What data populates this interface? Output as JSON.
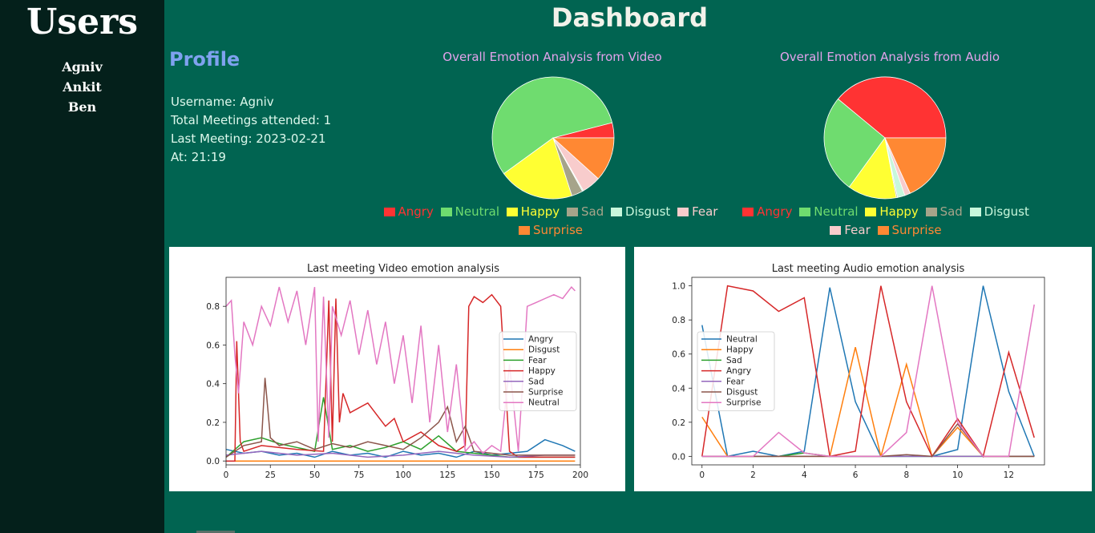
{
  "sidebar": {
    "title": "Users",
    "users": [
      "Agniv",
      "Ankit",
      "Ben"
    ]
  },
  "header": {
    "title": "Dashboard"
  },
  "profile": {
    "title": "Profile",
    "username": "Username: Agniv",
    "total_meetings": "Total Meetings attended: 1",
    "last_meeting": "Last Meeting: 2023-02-21",
    "at": "At: 21:19"
  },
  "colors": {
    "Angry": "#ff3333",
    "Neutral": "#6fdc6f",
    "Happy": "#ffff33",
    "Sad": "#a6a48a",
    "Disgust": "#c8f7dc",
    "Fear": "#f8cccc",
    "Surprise": "#ff8833",
    "page_bg": "#016451",
    "sidebar_bg": "#04201b"
  },
  "chart_data": [
    {
      "type": "pie",
      "title": "Overall Emotion Analysis from Video",
      "labels": [
        "Angry",
        "Neutral",
        "Happy",
        "Sad",
        "Disgust",
        "Fear",
        "Surprise"
      ],
      "values": [
        4,
        56,
        20,
        3,
        0.3,
        5,
        11.7
      ]
    },
    {
      "type": "pie",
      "title": "Overall Emotion Analysis from Audio",
      "labels": [
        "Angry",
        "Neutral",
        "Happy",
        "Sad",
        "Disgust",
        "Fear",
        "Surprise"
      ],
      "values": [
        39,
        26,
        13,
        0.3,
        2,
        1.5,
        18.2
      ]
    },
    {
      "type": "line",
      "title": "Last meeting Video emotion analysis",
      "xlim": [
        0,
        200
      ],
      "ylim": [
        -0.02,
        0.95
      ],
      "xticks": [
        0,
        25,
        50,
        75,
        100,
        125,
        150,
        175,
        200
      ],
      "yticks": [
        0.0,
        0.2,
        0.4,
        0.6,
        0.8
      ],
      "ytick_labels": [
        "0.0",
        "0.2",
        "0.4",
        "0.6",
        "0.8"
      ],
      "legend": "center-right",
      "series": [
        {
          "name": "Angry",
          "color": "#1f77b4",
          "x": [
            0,
            10,
            20,
            30,
            40,
            50,
            60,
            70,
            80,
            90,
            100,
            110,
            120,
            130,
            140,
            150,
            160,
            170,
            180,
            190,
            197
          ],
          "values": [
            0.06,
            0.04,
            0.05,
            0.03,
            0.04,
            0.02,
            0.05,
            0.03,
            0.04,
            0.02,
            0.05,
            0.03,
            0.04,
            0.02,
            0.05,
            0.03,
            0.04,
            0.05,
            0.11,
            0.08,
            0.05
          ]
        },
        {
          "name": "Disgust",
          "color": "#ff7f0e",
          "x": [
            0,
            197
          ],
          "values": [
            0.0,
            0.0
          ]
        },
        {
          "name": "Fear",
          "color": "#2ca02c",
          "x": [
            0,
            10,
            20,
            30,
            40,
            50,
            55,
            60,
            70,
            80,
            90,
            100,
            110,
            120,
            130,
            140,
            150,
            160,
            170,
            180,
            190,
            197
          ],
          "values": [
            0.02,
            0.1,
            0.12,
            0.09,
            0.07,
            0.05,
            0.33,
            0.06,
            0.08,
            0.05,
            0.07,
            0.1,
            0.06,
            0.13,
            0.05,
            0.04,
            0.03,
            0.02,
            0.02,
            0.02,
            0.02,
            0.02
          ]
        },
        {
          "name": "Happy",
          "color": "#d62728",
          "x": [
            0,
            5,
            6,
            8,
            10,
            20,
            40,
            55,
            58,
            60,
            62,
            64,
            66,
            70,
            80,
            90,
            95,
            100,
            110,
            120,
            130,
            135,
            137,
            140,
            145,
            150,
            155,
            160,
            165,
            170,
            180,
            190,
            197
          ],
          "values": [
            0.0,
            0.0,
            0.62,
            0.1,
            0.05,
            0.08,
            0.06,
            0.05,
            0.83,
            0.1,
            0.84,
            0.2,
            0.35,
            0.25,
            0.3,
            0.18,
            0.22,
            0.1,
            0.15,
            0.08,
            0.05,
            0.08,
            0.8,
            0.85,
            0.82,
            0.86,
            0.8,
            0.05,
            0.02,
            0.02,
            0.02,
            0.02,
            0.02
          ]
        },
        {
          "name": "Sad",
          "color": "#9467bd",
          "x": [
            0,
            20,
            40,
            60,
            80,
            100,
            120,
            140,
            160,
            180,
            197
          ],
          "values": [
            0.03,
            0.05,
            0.03,
            0.04,
            0.02,
            0.03,
            0.05,
            0.03,
            0.02,
            0.03,
            0.03
          ]
        },
        {
          "name": "Surprise",
          "color": "#8c564b",
          "x": [
            0,
            10,
            20,
            22,
            25,
            30,
            40,
            50,
            60,
            70,
            80,
            90,
            100,
            110,
            120,
            125,
            130,
            135,
            140,
            150,
            160,
            170,
            180,
            190,
            197
          ],
          "values": [
            0.02,
            0.08,
            0.1,
            0.43,
            0.12,
            0.08,
            0.1,
            0.06,
            0.09,
            0.07,
            0.1,
            0.08,
            0.06,
            0.12,
            0.2,
            0.28,
            0.1,
            0.18,
            0.05,
            0.04,
            0.03,
            0.03,
            0.03,
            0.03,
            0.03
          ]
        },
        {
          "name": "Neutral",
          "color": "#e377c2",
          "x": [
            0,
            3,
            5,
            7,
            10,
            15,
            20,
            25,
            30,
            35,
            40,
            45,
            50,
            52,
            55,
            58,
            60,
            65,
            70,
            75,
            80,
            85,
            90,
            95,
            100,
            105,
            110,
            115,
            120,
            125,
            130,
            135,
            140,
            145,
            150,
            155,
            160,
            165,
            170,
            175,
            180,
            185,
            190,
            195,
            197
          ],
          "values": [
            0.8,
            0.83,
            0.55,
            0.35,
            0.72,
            0.6,
            0.8,
            0.7,
            0.9,
            0.72,
            0.88,
            0.6,
            0.9,
            0.1,
            0.85,
            0.12,
            0.8,
            0.65,
            0.83,
            0.55,
            0.78,
            0.5,
            0.72,
            0.4,
            0.65,
            0.3,
            0.7,
            0.2,
            0.6,
            0.15,
            0.5,
            0.05,
            0.1,
            0.04,
            0.08,
            0.05,
            0.5,
            0.05,
            0.8,
            0.82,
            0.84,
            0.86,
            0.84,
            0.9,
            0.88
          ]
        }
      ]
    },
    {
      "type": "line",
      "title": "Last meeting Audio emotion analysis",
      "xlim": [
        -0.4,
        13.4
      ],
      "ylim": [
        -0.05,
        1.05
      ],
      "xticks": [
        0,
        2,
        4,
        6,
        8,
        10,
        12
      ],
      "yticks": [
        0.0,
        0.2,
        0.4,
        0.6,
        0.8,
        1.0
      ],
      "ytick_labels": [
        "0.0",
        "0.2",
        "0.4",
        "0.6",
        "0.8",
        "1.0"
      ],
      "legend": "center-left",
      "series": [
        {
          "name": "Neutral",
          "color": "#1f77b4",
          "x": [
            0,
            1,
            2,
            3,
            4,
            5,
            6,
            7,
            8,
            9,
            10,
            11,
            12,
            13
          ],
          "values": [
            0.77,
            0.0,
            0.03,
            0.0,
            0.03,
            0.99,
            0.32,
            0.0,
            0.0,
            0.0,
            0.04,
            1.0,
            0.38,
            0.0
          ]
        },
        {
          "name": "Happy",
          "color": "#ff7f0e",
          "x": [
            0,
            1,
            2,
            3,
            4,
            5,
            6,
            7,
            8,
            9,
            10,
            11,
            12,
            13
          ],
          "values": [
            0.23,
            0.0,
            0.0,
            0.0,
            0.0,
            0.0,
            0.64,
            0.0,
            0.54,
            0.0,
            0.17,
            0.0,
            0.0,
            0.0
          ]
        },
        {
          "name": "Sad",
          "color": "#2ca02c",
          "x": [
            0,
            1,
            2,
            3,
            4,
            5,
            6,
            7,
            8,
            9,
            10,
            11,
            12,
            13
          ],
          "values": [
            0.0,
            0.0,
            0.0,
            0.0,
            0.02,
            0.0,
            0.0,
            0.0,
            0.0,
            0.0,
            0.0,
            0.0,
            0.0,
            0.0
          ]
        },
        {
          "name": "Angry",
          "color": "#d62728",
          "x": [
            0,
            1,
            2,
            3,
            4,
            5,
            6,
            7,
            8,
            9,
            10,
            11,
            12,
            13
          ],
          "values": [
            0.0,
            1.0,
            0.97,
            0.85,
            0.93,
            0.0,
            0.03,
            1.0,
            0.32,
            0.0,
            0.22,
            0.0,
            0.61,
            0.11
          ]
        },
        {
          "name": "Fear",
          "color": "#9467bd",
          "x": [
            0,
            1,
            2,
            3,
            4,
            5,
            6,
            7,
            8,
            9,
            10,
            11,
            12,
            13
          ],
          "values": [
            0.0,
            0.0,
            0.0,
            0.0,
            0.0,
            0.0,
            0.0,
            0.0,
            0.0,
            0.0,
            0.0,
            0.0,
            0.0,
            0.0
          ]
        },
        {
          "name": "Disgust",
          "color": "#8c564b",
          "x": [
            0,
            1,
            2,
            3,
            4,
            5,
            6,
            7,
            8,
            9,
            10,
            11,
            12,
            13
          ],
          "values": [
            0.0,
            0.0,
            0.0,
            0.0,
            0.0,
            0.0,
            0.0,
            0.0,
            0.01,
            0.0,
            0.19,
            0.0,
            0.0,
            0.0
          ]
        },
        {
          "name": "Surprise",
          "color": "#e377c2",
          "x": [
            0,
            1,
            2,
            3,
            4,
            5,
            6,
            7,
            8,
            9,
            10,
            11,
            12,
            13
          ],
          "values": [
            0.0,
            0.0,
            0.0,
            0.14,
            0.02,
            0.0,
            0.0,
            0.0,
            0.14,
            1.0,
            0.2,
            0.0,
            0.0,
            0.89
          ]
        }
      ]
    }
  ]
}
